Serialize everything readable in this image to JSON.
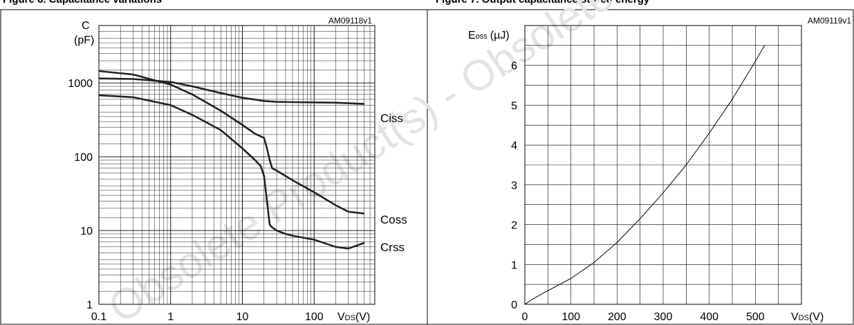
{
  "header_left": "Figure 6. Capacitance variations",
  "header_right": "Figure 7. Output capacitance stored energy",
  "watermark": "Obsolete Product(s) - Obsolete Product(s)",
  "chart_data": [
    {
      "type": "line",
      "code": "AM09118v1",
      "ylabel_top": "C",
      "ylabel_unit": "(pF)",
      "xlabel": "VDS(V)",
      "xlabel_main": "V",
      "xlabel_sub": "DS",
      "xlabel_unit": "(V)",
      "x_scale": "log",
      "y_scale": "log",
      "xlim": [
        0.1,
        700
      ],
      "ylim": [
        1,
        6000
      ],
      "x_tick_labels": [
        "0.1",
        "1",
        "10",
        "100"
      ],
      "x_ticks": [
        0.1,
        1,
        10,
        100
      ],
      "y_tick_labels": [
        "1",
        "10",
        "100",
        "1000"
      ],
      "y_ticks": [
        1,
        10,
        100,
        1000
      ],
      "grid": true,
      "series": [
        {
          "name": "Ciss",
          "x": [
            0.1,
            0.3,
            1,
            2,
            5,
            10,
            20,
            30,
            50,
            100,
            200,
            500
          ],
          "y": [
            1150,
            1130,
            1030,
            900,
            730,
            630,
            570,
            555,
            550,
            545,
            540,
            520
          ]
        },
        {
          "name": "Coss",
          "x": [
            0.1,
            0.3,
            1,
            2,
            5,
            10,
            15,
            20,
            22,
            24,
            26,
            30,
            50,
            100,
            200,
            300,
            500
          ],
          "y": [
            1450,
            1300,
            950,
            700,
            420,
            270,
            205,
            180,
            130,
            90,
            70,
            65,
            48,
            33,
            22,
            18,
            17
          ]
        },
        {
          "name": "Crss",
          "x": [
            0.1,
            0.3,
            1,
            2,
            5,
            10,
            15,
            18,
            20,
            22,
            24,
            26,
            30,
            40,
            50,
            100,
            200,
            300,
            500
          ],
          "y": [
            680,
            640,
            500,
            370,
            230,
            130,
            90,
            75,
            55,
            25,
            12,
            11,
            10,
            9,
            8.5,
            7.5,
            6,
            5.7,
            6.8
          ]
        }
      ]
    },
    {
      "type": "line",
      "code": "AM09119v1",
      "ylabel_main": "E",
      "ylabel_sub": "oss",
      "ylabel_unit": "(µJ)",
      "xlabel": "VDS(V)",
      "xlabel_main": "V",
      "xlabel_sub": "DS",
      "xlabel_unit": "(V)",
      "xlim": [
        0,
        600
      ],
      "ylim": [
        0,
        7
      ],
      "x_tick_labels": [
        "0",
        "100",
        "200",
        "300",
        "400",
        "500"
      ],
      "x_ticks": [
        0,
        100,
        200,
        300,
        400,
        500
      ],
      "y_tick_labels": [
        "0",
        "1",
        "2",
        "3",
        "4",
        "5",
        "6"
      ],
      "y_ticks": [
        0,
        1,
        2,
        3,
        4,
        5,
        6
      ],
      "grid": true,
      "series": [
        {
          "x": [
            0,
            20,
            40,
            100,
            150,
            200,
            250,
            300,
            350,
            400,
            450,
            500,
            520
          ],
          "y": [
            0,
            0.15,
            0.28,
            0.65,
            1.05,
            1.55,
            2.15,
            2.8,
            3.5,
            4.3,
            5.15,
            6.1,
            6.5
          ]
        }
      ]
    }
  ]
}
